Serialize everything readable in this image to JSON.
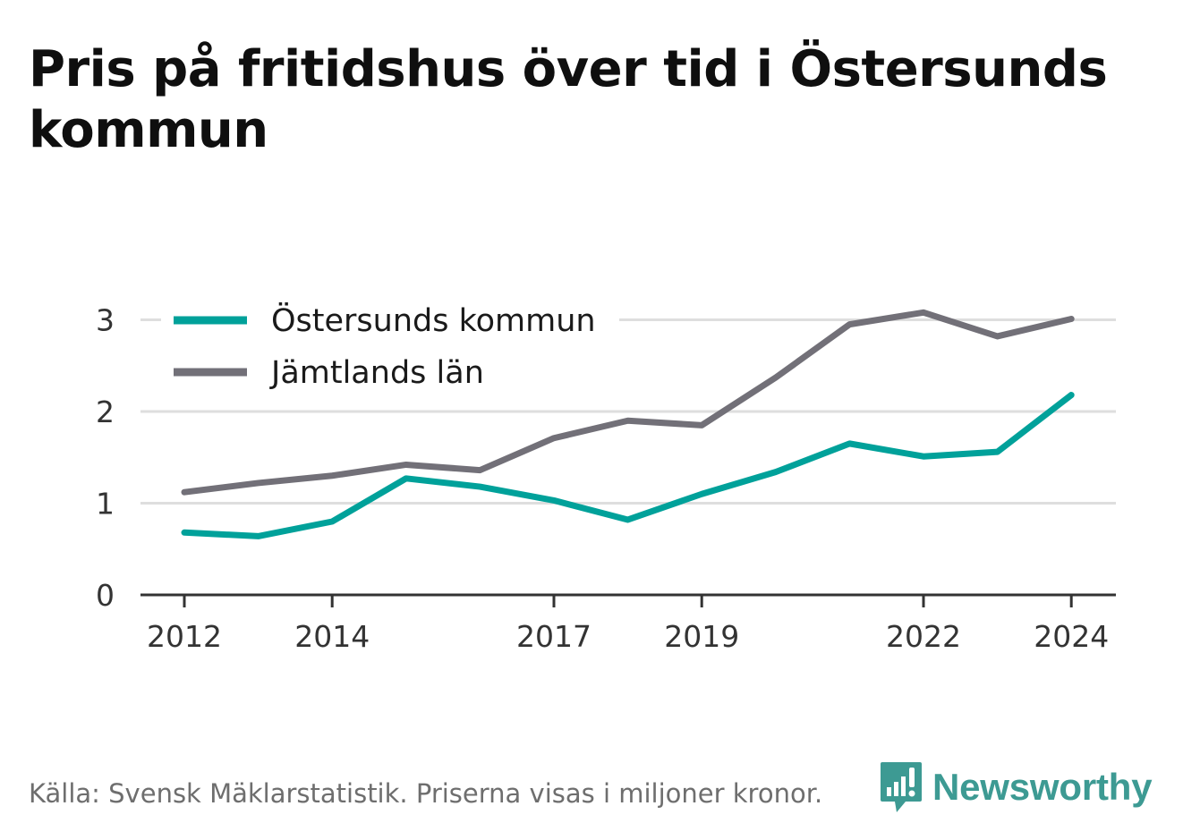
{
  "title": "Pris på fritidshus över tid i Östersunds kommun",
  "source": "Källa: Svensk Mäklarstatistik. Priserna visas i miljoner kronor.",
  "brand": {
    "name": "Newsworthy",
    "icon": "newsworthy-logo-icon",
    "color": "#3d9a93"
  },
  "chart_data": {
    "type": "line",
    "x": [
      2012,
      2013,
      2014,
      2015,
      2016,
      2017,
      2018,
      2019,
      2020,
      2021,
      2022,
      2023,
      2024
    ],
    "x_ticks": [
      "2012",
      "2014",
      "2017",
      "2019",
      "2022",
      "2024"
    ],
    "y_ticks": [
      "0",
      "1",
      "2",
      "3"
    ],
    "ylim": [
      0,
      3.15
    ],
    "grid": true,
    "legend_position": "top-left",
    "series": [
      {
        "name": "Östersunds kommun",
        "color": "#00a19a",
        "values": [
          0.68,
          0.64,
          0.8,
          1.27,
          1.18,
          1.03,
          0.82,
          1.1,
          1.34,
          1.65,
          1.51,
          1.56,
          2.18
        ]
      },
      {
        "name": "Jämtlands län",
        "color": "#727078",
        "values": [
          1.12,
          1.22,
          1.3,
          1.42,
          1.36,
          1.71,
          1.9,
          1.85,
          2.37,
          2.95,
          3.08,
          2.82,
          3.01
        ]
      }
    ],
    "title": "Pris på fritidshus över tid i Östersunds kommun",
    "xlabel": "",
    "ylabel": ""
  }
}
